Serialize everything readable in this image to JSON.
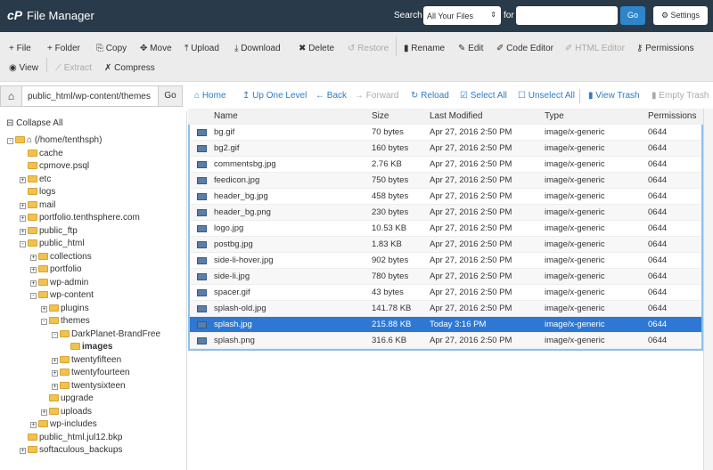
{
  "header": {
    "logo": "cP",
    "title": "File Manager",
    "search_label": "Search",
    "search_scope": "All Your Files",
    "for_label": "for",
    "search_value": "",
    "go": "Go",
    "settings": "Settings"
  },
  "toolbar": {
    "row1": [
      {
        "icon": "plus-icon",
        "g": "+",
        "label": "File",
        "disabled": false
      },
      {
        "icon": "plus-icon",
        "g": "+",
        "label": "Folder",
        "disabled": false
      },
      {
        "icon": "copy-icon",
        "g": "⎘",
        "label": "Copy",
        "disabled": false
      },
      {
        "icon": "move-icon",
        "g": "✥",
        "label": "Move",
        "disabled": false
      },
      {
        "icon": "upload-icon",
        "g": "⤒",
        "label": "Upload",
        "disabled": false
      },
      {
        "icon": "download-icon",
        "g": "⤓",
        "label": "Download",
        "disabled": false
      },
      {
        "icon": "delete-icon",
        "g": "✖",
        "label": "Delete",
        "disabled": false
      },
      {
        "icon": "restore-icon",
        "g": "↺",
        "label": "Restore",
        "disabled": true
      },
      {
        "icon": "rename-icon",
        "g": "▮",
        "label": "Rename",
        "disabled": false
      },
      {
        "icon": "edit-icon",
        "g": "✎",
        "label": "Edit",
        "disabled": false
      },
      {
        "icon": "code-editor-icon",
        "g": "✐",
        "label": "Code Editor",
        "disabled": false
      },
      {
        "icon": "html-editor-icon",
        "g": "✐",
        "label": "HTML Editor",
        "disabled": true
      },
      {
        "icon": "key-icon",
        "g": "⚷",
        "label": "Permissions",
        "disabled": false
      }
    ],
    "row2": [
      {
        "icon": "eye-icon",
        "g": "◉",
        "label": "View",
        "disabled": false
      },
      {
        "icon": "extract-icon",
        "g": "⟋",
        "label": "Extract",
        "disabled": true
      },
      {
        "icon": "compress-icon",
        "g": "✗",
        "label": "Compress",
        "disabled": false
      }
    ]
  },
  "pathbar": {
    "path": "public_html/wp-content/themes",
    "go": "Go",
    "nav": [
      {
        "icon": "home-icon",
        "g": "⌂",
        "label": "Home",
        "disabled": false
      },
      {
        "icon": "up-icon",
        "g": "↥",
        "label": "Up One Level",
        "disabled": false
      },
      {
        "icon": "back-icon",
        "g": "←",
        "label": "Back",
        "disabled": false
      },
      {
        "icon": "forward-icon",
        "g": "→",
        "label": "Forward",
        "disabled": true
      },
      {
        "icon": "reload-icon",
        "g": "↻",
        "label": "Reload",
        "disabled": false
      },
      {
        "icon": "check-icon",
        "g": "☑",
        "label": "Select All",
        "disabled": false
      },
      {
        "icon": "square-icon",
        "g": "☐",
        "label": "Unselect All",
        "disabled": false
      },
      {
        "icon": "trash-icon",
        "g": "▮",
        "label": "View Trash",
        "disabled": false
      },
      {
        "icon": "trash-icon",
        "g": "▮",
        "label": "Empty Trash",
        "disabled": true
      }
    ]
  },
  "tree": {
    "collapse_all": "Collapse All",
    "items": [
      {
        "label": "(/home/tenthsph)",
        "d": 0,
        "exp": "-",
        "home": true
      },
      {
        "label": "cache",
        "d": 1,
        "exp": ""
      },
      {
        "label": "cpmove.psql",
        "d": 1,
        "exp": ""
      },
      {
        "label": "etc",
        "d": 1,
        "exp": "+"
      },
      {
        "label": "logs",
        "d": 1,
        "exp": ""
      },
      {
        "label": "mail",
        "d": 1,
        "exp": "+"
      },
      {
        "label": "portfolio.tenthsphere.com",
        "d": 1,
        "exp": "+"
      },
      {
        "label": "public_ftp",
        "d": 1,
        "exp": "+"
      },
      {
        "label": "public_html",
        "d": 1,
        "exp": "-"
      },
      {
        "label": "collections",
        "d": 2,
        "exp": "+"
      },
      {
        "label": "portfolio",
        "d": 2,
        "exp": "+"
      },
      {
        "label": "wp-admin",
        "d": 2,
        "exp": "+"
      },
      {
        "label": "wp-content",
        "d": 2,
        "exp": "-"
      },
      {
        "label": "plugins",
        "d": 3,
        "exp": "+"
      },
      {
        "label": "themes",
        "d": 3,
        "exp": "-"
      },
      {
        "label": "DarkPlanet-BrandFree",
        "d": 4,
        "exp": "-"
      },
      {
        "label": "images",
        "d": 5,
        "exp": "",
        "bold": true
      },
      {
        "label": "twentyfifteen",
        "d": 4,
        "exp": "+"
      },
      {
        "label": "twentyfourteen",
        "d": 4,
        "exp": "+"
      },
      {
        "label": "twentysixteen",
        "d": 4,
        "exp": "+"
      },
      {
        "label": "upgrade",
        "d": 3,
        "exp": ""
      },
      {
        "label": "uploads",
        "d": 3,
        "exp": "+"
      },
      {
        "label": "wp-includes",
        "d": 2,
        "exp": "+"
      },
      {
        "label": "public_html.jul12.bkp",
        "d": 1,
        "exp": ""
      },
      {
        "label": "softaculous_backups",
        "d": 1,
        "exp": "+"
      }
    ]
  },
  "table": {
    "columns": [
      "Name",
      "Size",
      "Last Modified",
      "Type",
      "Permissions"
    ],
    "rows": [
      [
        "bg.gif",
        "70 bytes",
        "Apr 27, 2016 2:50 PM",
        "image/x-generic",
        "0644"
      ],
      [
        "bg2.gif",
        "160 bytes",
        "Apr 27, 2016 2:50 PM",
        "image/x-generic",
        "0644"
      ],
      [
        "commentsbg.jpg",
        "2.76 KB",
        "Apr 27, 2016 2:50 PM",
        "image/x-generic",
        "0644"
      ],
      [
        "feedicon.jpg",
        "750 bytes",
        "Apr 27, 2016 2:50 PM",
        "image/x-generic",
        "0644"
      ],
      [
        "header_bg.jpg",
        "458 bytes",
        "Apr 27, 2016 2:50 PM",
        "image/x-generic",
        "0644"
      ],
      [
        "header_bg.png",
        "230 bytes",
        "Apr 27, 2016 2:50 PM",
        "image/x-generic",
        "0644"
      ],
      [
        "logo.jpg",
        "10.53 KB",
        "Apr 27, 2016 2:50 PM",
        "image/x-generic",
        "0644"
      ],
      [
        "postbg.jpg",
        "1.83 KB",
        "Apr 27, 2016 2:50 PM",
        "image/x-generic",
        "0644"
      ],
      [
        "side-li-hover.jpg",
        "902 bytes",
        "Apr 27, 2016 2:50 PM",
        "image/x-generic",
        "0644"
      ],
      [
        "side-li.jpg",
        "780 bytes",
        "Apr 27, 2016 2:50 PM",
        "image/x-generic",
        "0644"
      ],
      [
        "spacer.gif",
        "43 bytes",
        "Apr 27, 2016 2:50 PM",
        "image/x-generic",
        "0644"
      ],
      [
        "splash-old.jpg",
        "141.78 KB",
        "Apr 27, 2016 2:50 PM",
        "image/x-generic",
        "0644"
      ],
      [
        "splash.jpg",
        "215.88 KB",
        "Today 3:16 PM",
        "image/x-generic",
        "0644"
      ],
      [
        "splash.png",
        "316.6 KB",
        "Apr 27, 2016 2:50 PM",
        "image/x-generic",
        "0644"
      ]
    ],
    "selected_row": "splash.jpg"
  },
  "colors": {
    "header": "#293a4a",
    "accent": "#2e86c8",
    "selected": "#2e78d4"
  }
}
